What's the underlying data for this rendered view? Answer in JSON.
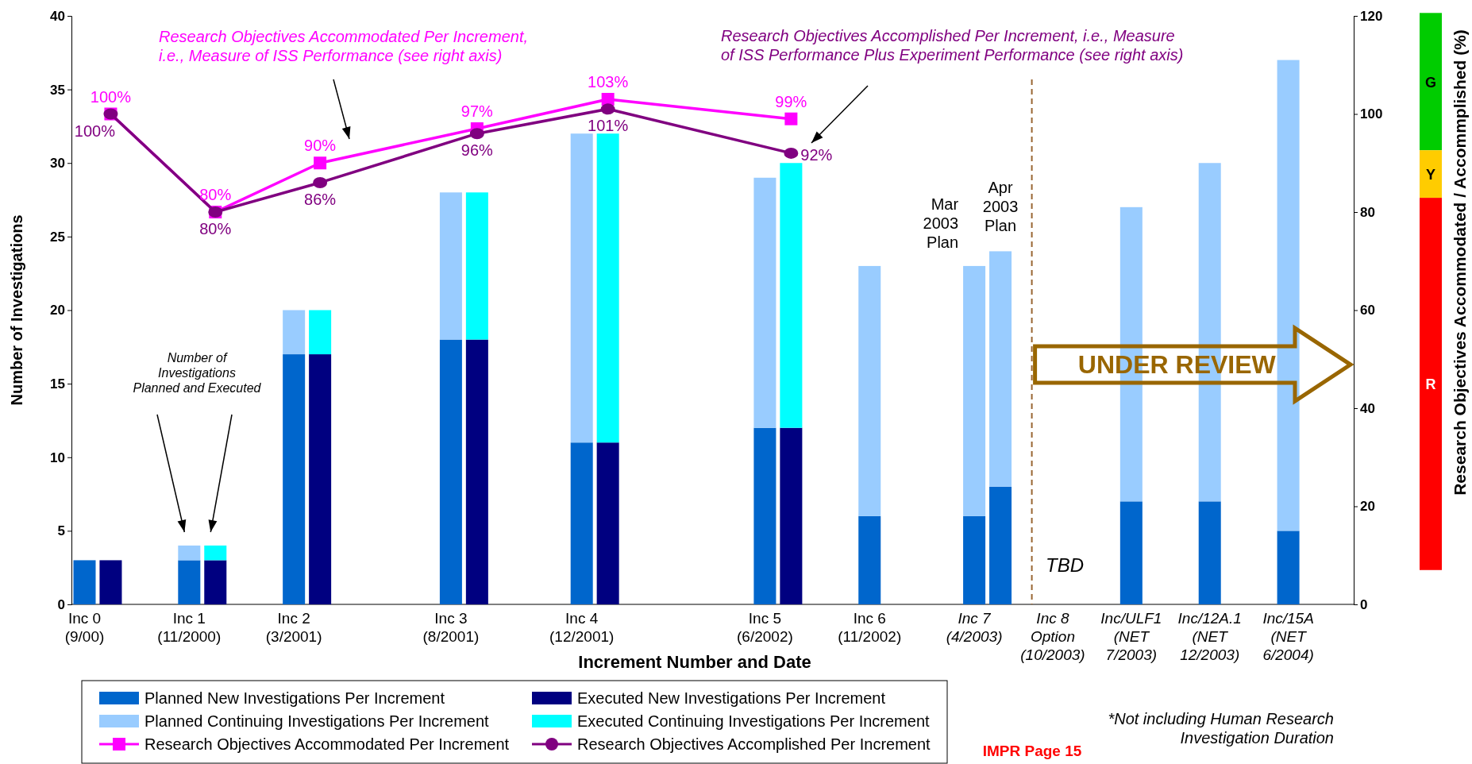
{
  "chart_data": {
    "type": "bar",
    "stacked": true,
    "xlabel": "Increment Number and Date",
    "ylabel": "Number of Investigations",
    "y2label": "Research Objectives Accommodated / Accommplished (%)",
    "categories": [
      "Inc 0\n(9/00)",
      null,
      null,
      null,
      "Inc 1\n(11/2000)",
      null,
      null,
      null,
      "Inc 2\n(3/2001)",
      null,
      null,
      null,
      null,
      null,
      "Inc 3\n(8/2001)",
      null,
      null,
      null,
      null,
      "Inc 4\n(12/2001)",
      null,
      null,
      null,
      null,
      null,
      null,
      "Inc 5\n(6/2002)",
      null,
      null,
      null,
      "Inc 6\n(11/2002)",
      null,
      null,
      null,
      "Inc 7\n(4/2003)",
      null,
      null,
      "Inc 8\nOption\n(10/2003)",
      null,
      null,
      "Inc/ULF1\n(NET\n7/2003)",
      null,
      null,
      "Inc/12A.1\n(NET\n12/2003)",
      null,
      null,
      "Inc/15A\n(NET\n6/2004)",
      null,
      null
    ],
    "ylim": [
      0,
      40
    ],
    "yticks": [
      0,
      5,
      10,
      15,
      20,
      25,
      30,
      35,
      40
    ],
    "y2lim": [
      0,
      120
    ],
    "y2ticks": [
      0,
      20,
      40,
      60,
      80,
      100,
      120
    ],
    "series": [
      {
        "name": "Planned New Investigations Per Increment",
        "color": "#0066cc",
        "values": [
          3,
          null,
          null,
          null,
          3,
          null,
          null,
          null,
          17,
          null,
          null,
          null,
          null,
          null,
          18,
          null,
          null,
          null,
          null,
          11,
          null,
          null,
          null,
          null,
          null,
          null,
          12,
          null,
          null,
          null,
          6,
          null,
          null,
          null,
          6,
          8,
          null,
          null,
          null,
          null,
          7,
          null,
          null,
          7,
          null,
          null,
          5,
          null,
          null
        ]
      },
      {
        "name": "Planned Continuing Investigations Per Increment",
        "color": "#99ccff",
        "values": [
          null,
          null,
          null,
          null,
          1,
          null,
          null,
          null,
          3,
          null,
          null,
          null,
          null,
          null,
          10,
          null,
          null,
          null,
          null,
          21,
          null,
          null,
          null,
          null,
          null,
          null,
          17,
          null,
          null,
          null,
          17,
          null,
          null,
          null,
          17,
          16,
          null,
          null,
          null,
          null,
          20,
          null,
          null,
          23,
          null,
          null,
          32,
          null,
          null
        ]
      },
      {
        "name": "Executed New Investigations Per Increment",
        "color": "#000080",
        "values": [
          null,
          3,
          null,
          null,
          null,
          3,
          null,
          null,
          null,
          17,
          null,
          null,
          null,
          null,
          null,
          18,
          null,
          null,
          null,
          null,
          11,
          null,
          null,
          null,
          null,
          null,
          null,
          12,
          null,
          null,
          null,
          null,
          null,
          null,
          null,
          null,
          null,
          null,
          null,
          null,
          null,
          null,
          null,
          null,
          null,
          null,
          null,
          null,
          null
        ]
      },
      {
        "name": "Executed Continuing Investigations Per Increment",
        "color": "#00ffff",
        "values": [
          null,
          null,
          null,
          null,
          null,
          1,
          null,
          null,
          null,
          3,
          null,
          null,
          null,
          null,
          null,
          10,
          null,
          null,
          null,
          null,
          21,
          null,
          null,
          null,
          null,
          null,
          null,
          18,
          null,
          null,
          null,
          null,
          null,
          null,
          null,
          null,
          null,
          null,
          null,
          null,
          null,
          null,
          null,
          null,
          null,
          null,
          null,
          null,
          null
        ]
      },
      {
        "name": "Research Objectives Accommodated Per Increment",
        "type": "line",
        "axis": "y2",
        "marker": "square",
        "color": "#ff00ff",
        "values": [
          null,
          100,
          null,
          null,
          null,
          80,
          null,
          null,
          null,
          90,
          null,
          null,
          null,
          null,
          null,
          97,
          null,
          null,
          null,
          null,
          103,
          null,
          null,
          null,
          null,
          null,
          null,
          99,
          null,
          null,
          null,
          null,
          null,
          null,
          null,
          null,
          null,
          null,
          null,
          null,
          null,
          null,
          null,
          null,
          null,
          null,
          null,
          null,
          null
        ],
        "value_labels": [
          null,
          "100%",
          null,
          null,
          null,
          "80%",
          null,
          null,
          null,
          "90%",
          null,
          null,
          null,
          null,
          null,
          "97%",
          null,
          null,
          null,
          null,
          "103%",
          null,
          null,
          null,
          null,
          null,
          null,
          "99%",
          null,
          null,
          null,
          null,
          null,
          null,
          null,
          null,
          null,
          null,
          null,
          null,
          null,
          null,
          null,
          null,
          null,
          null,
          null,
          null,
          null
        ]
      },
      {
        "name": "Research Objectives Accomplished Per Increment",
        "type": "line",
        "axis": "y2",
        "marker": "circle",
        "color": "#800080",
        "values": [
          null,
          100,
          null,
          null,
          null,
          80,
          null,
          null,
          null,
          86,
          null,
          null,
          null,
          null,
          null,
          96,
          null,
          null,
          null,
          null,
          101,
          null,
          null,
          null,
          null,
          null,
          null,
          92,
          null,
          null,
          null,
          null,
          null,
          null,
          null,
          null,
          null,
          null,
          null,
          null,
          null,
          null,
          null,
          null,
          null,
          null,
          null,
          null,
          null
        ],
        "value_labels": [
          null,
          "100%",
          null,
          null,
          null,
          "80%",
          null,
          null,
          null,
          "86%",
          null,
          null,
          null,
          null,
          null,
          "96%",
          null,
          null,
          null,
          null,
          "101%",
          null,
          null,
          null,
          null,
          null,
          null,
          "92%",
          null,
          null,
          null,
          null,
          null,
          null,
          null,
          null,
          null,
          null,
          null,
          null,
          null,
          null,
          null,
          null,
          null,
          null,
          null,
          null,
          null
        ]
      }
    ],
    "annotations": [
      "Research Objectives Accommodated Per Increment,\ni.e., Measure of ISS Performance (see right axis)",
      "Research Objectives Accomplished Per Increment, i.e., Measure\nof ISS Performance Plus Experiment Performance (see right axis)",
      "Number of\nInvestigations\nPlanned and Executed",
      "Mar\n2003\nPlan",
      "Apr\n2003\nPlan",
      "UNDER REVIEW",
      "TBD",
      "*Not including Human Research\nInvestigation Duration",
      "IMPR Page 15",
      "G",
      "Y",
      "R"
    ],
    "legend": "bottom"
  }
}
